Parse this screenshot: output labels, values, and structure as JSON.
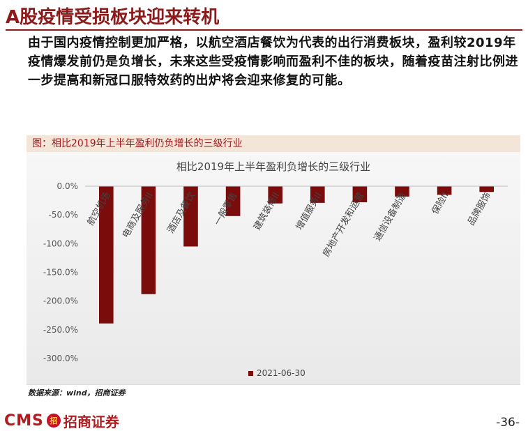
{
  "page": {
    "title": "A股疫情受损板块迎来转机",
    "body": "由于国内疫情控制更加严格，以航空酒店餐饮为代表的出行消费板块，盈利较2019年疫情爆发前仍是负增长，未来这些受疫情影响而盈利不佳的板块，随着疫苗注射比例进一步提高和新冠口服特效药的出炉将会迎来修复的可能。",
    "figure_caption": "图：相比2019年上半年盈利仍负增长的三级行业",
    "source": "数据来源：wind，招商证券",
    "page_number": "-36-",
    "logo": {
      "prefix": "CMS",
      "mark": "招",
      "name": "招商证券"
    }
  },
  "colors": {
    "accent": "#8b1a1a",
    "bar": "#7a0c0c",
    "caption_bg": "#f3e5d8"
  },
  "chart_data": {
    "type": "bar",
    "title": "相比2019年上半年盈利负增长的三级行业",
    "categories": [
      "航空机场",
      "电商及服务II",
      "酒店及餐饮",
      "一般零售",
      "建筑装修II",
      "增值服务II",
      "房地产开发和运营",
      "通信设备制造",
      "保险II",
      "品牌服饰"
    ],
    "series": [
      {
        "name": "2021-06-30",
        "values": [
          -239,
          -188,
          -105,
          -52,
          -30,
          -29,
          -28,
          -18,
          -15,
          -10
        ]
      }
    ],
    "ylim": [
      -300,
      0
    ],
    "yticks": [
      0,
      -50,
      -100,
      -150,
      -200,
      -250,
      -300
    ],
    "ytick_labels": [
      "0.0%",
      "-50.0%",
      "-100.0%",
      "-150.0%",
      "-200.0%",
      "-250.0%",
      "-300.0%"
    ],
    "legend": "bottom",
    "grid": false
  }
}
